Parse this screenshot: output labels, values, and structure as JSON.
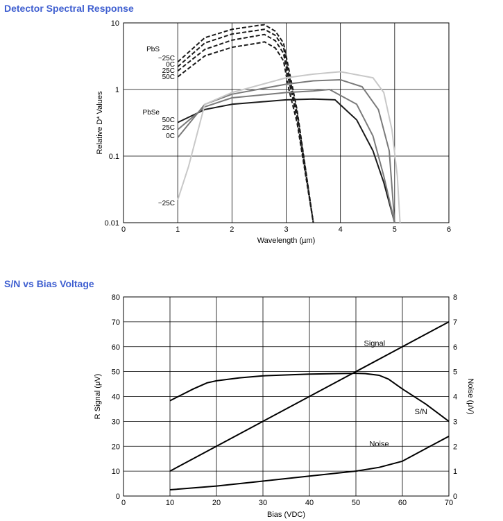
{
  "colors": {
    "section_title": "#3f5fd0",
    "grid": "#000000",
    "dark": "#1a1a1a",
    "mid": "#7a7a7a",
    "light": "#c8c8c8"
  },
  "chart_data": [
    {
      "type": "line",
      "section_title": "Detector Spectral Response",
      "xlabel": "Wavelength (µm)",
      "ylabel": "Relative D* Values",
      "xlim": [
        0,
        6
      ],
      "ylim": [
        0.01,
        10
      ],
      "yscale": "log",
      "xticks": [
        "0",
        "1",
        "2",
        "3",
        "4",
        "5",
        "6"
      ],
      "yticks": [
        "0.01",
        "0.1",
        "1",
        "10"
      ],
      "grid": true,
      "group_labels": {
        "pbs": "PbS",
        "pbse": "PbSe"
      },
      "series": [
        {
          "name": "PbS -25C",
          "label": "−25C",
          "group": "pbs",
          "style": "dashed",
          "color": "dark",
          "x": [
            1.0,
            1.5,
            2.0,
            2.5,
            2.6,
            2.8,
            2.95,
            3.05,
            3.2,
            3.5
          ],
          "y": [
            2.6,
            6.0,
            8.0,
            9.2,
            9.4,
            7.5,
            5.0,
            2.0,
            0.5,
            0.01
          ]
        },
        {
          "name": "PbS 0C",
          "label": "0C",
          "group": "pbs",
          "style": "dashed",
          "color": "dark",
          "x": [
            1.0,
            1.5,
            2.0,
            2.5,
            2.6,
            2.8,
            2.95,
            3.05,
            3.2,
            3.5
          ],
          "y": [
            2.2,
            5.0,
            6.8,
            7.8,
            8.0,
            6.5,
            4.3,
            1.7,
            0.45,
            0.01
          ]
        },
        {
          "name": "PbS 25C",
          "label": "25C",
          "group": "pbs",
          "style": "dashed",
          "color": "dark",
          "x": [
            1.0,
            1.5,
            2.0,
            2.5,
            2.6,
            2.8,
            2.95,
            3.05,
            3.2,
            3.5
          ],
          "y": [
            1.9,
            4.0,
            5.5,
            6.5,
            6.7,
            5.4,
            3.5,
            1.35,
            0.38,
            0.01
          ]
        },
        {
          "name": "PbS 50C",
          "label": "50C",
          "group": "pbs",
          "style": "dashed",
          "color": "dark",
          "x": [
            1.0,
            1.5,
            2.0,
            2.5,
            2.6,
            2.8,
            2.95,
            3.05,
            3.2,
            3.5
          ],
          "y": [
            1.55,
            3.2,
            4.3,
            5.0,
            5.2,
            4.2,
            2.7,
            1.0,
            0.32,
            0.01
          ]
        },
        {
          "name": "PbSe 50C",
          "label": "50C",
          "group": "pbse",
          "style": "solid",
          "color": "dark",
          "x": [
            1.0,
            1.5,
            2.0,
            3.0,
            3.5,
            3.9,
            4.3,
            4.6,
            4.8,
            5.0
          ],
          "y": [
            0.32,
            0.5,
            0.6,
            0.7,
            0.72,
            0.7,
            0.35,
            0.12,
            0.04,
            0.01
          ]
        },
        {
          "name": "PbSe 25C",
          "label": "25C",
          "group": "pbse",
          "style": "solid",
          "color": "mid",
          "x": [
            1.0,
            1.5,
            2.0,
            3.0,
            3.5,
            3.8,
            4.3,
            4.6,
            4.8,
            5.0
          ],
          "y": [
            0.25,
            0.55,
            0.75,
            0.9,
            0.95,
            1.0,
            0.6,
            0.2,
            0.05,
            0.01
          ]
        },
        {
          "name": "PbSe 0C",
          "label": "0C",
          "group": "pbse",
          "style": "solid",
          "color": "mid",
          "x": [
            1.0,
            1.5,
            2.0,
            3.0,
            3.5,
            4.0,
            4.4,
            4.7,
            4.9,
            5.0
          ],
          "y": [
            0.19,
            0.6,
            0.85,
            1.2,
            1.35,
            1.4,
            1.1,
            0.5,
            0.12,
            0.01
          ]
        },
        {
          "name": "PbSe -25C",
          "label": "−25C",
          "group": "pbse",
          "style": "solid",
          "color": "light",
          "x": [
            1.0,
            1.2,
            1.5,
            2.0,
            3.0,
            3.5,
            4.0,
            4.6,
            4.8,
            4.95,
            5.05,
            5.1
          ],
          "y": [
            0.022,
            0.07,
            0.6,
            0.9,
            1.5,
            1.7,
            1.85,
            1.5,
            0.9,
            0.25,
            0.05,
            0.01
          ]
        }
      ]
    },
    {
      "type": "line",
      "section_title": "S/N vs Bias Voltage",
      "xlabel": "Bias (VDC)",
      "ylabel": "R Signal (μV)",
      "y2label": "Noise (μV)",
      "xlim": [
        0,
        70
      ],
      "ylim": [
        0,
        80
      ],
      "y2lim": [
        0,
        8
      ],
      "xticks": [
        "0",
        "10",
        "20",
        "30",
        "40",
        "50",
        "60",
        "70"
      ],
      "yticks": [
        "0",
        "10",
        "20",
        "30",
        "40",
        "50",
        "60",
        "70",
        "80"
      ],
      "y2ticks": [
        "0",
        "1",
        "2",
        "3",
        "4",
        "5",
        "6",
        "7",
        "8"
      ],
      "grid": true,
      "series": [
        {
          "name": "Signal",
          "label": "Signal",
          "axis": "left",
          "x": [
            10,
            70
          ],
          "y": [
            10,
            70
          ]
        },
        {
          "name": "S/N",
          "label": "S/N",
          "axis": "left",
          "x": [
            10,
            15,
            18,
            20,
            25,
            30,
            40,
            50,
            52,
            55,
            57,
            60,
            65,
            70
          ],
          "y": [
            38.3,
            43,
            45.5,
            46.3,
            47.5,
            48.3,
            49,
            49.3,
            49.2,
            48.5,
            47,
            43,
            37,
            30
          ]
        },
        {
          "name": "Noise",
          "label": "Noise",
          "axis": "right",
          "x": [
            10,
            20,
            30,
            40,
            50,
            55,
            60,
            65,
            70
          ],
          "y": [
            0.25,
            0.4,
            0.6,
            0.8,
            1.0,
            1.15,
            1.4,
            1.9,
            2.4
          ]
        }
      ]
    }
  ]
}
